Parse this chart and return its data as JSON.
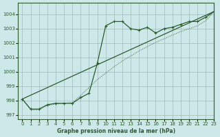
{
  "title": "Graphe pression niveau de la mer (hPa)",
  "background_color": "#cde8e8",
  "plot_bg_color": "#cde8e8",
  "grid_color": "#a0b8b8",
  "line_color": "#2d5a2d",
  "xlim": [
    -0.5,
    23
  ],
  "ylim": [
    996.7,
    1004.8
  ],
  "yticks": [
    997,
    998,
    999,
    1000,
    1001,
    1002,
    1003,
    1004
  ],
  "xticks": [
    0,
    1,
    2,
    3,
    4,
    5,
    6,
    7,
    8,
    9,
    10,
    11,
    12,
    13,
    14,
    15,
    16,
    17,
    18,
    19,
    20,
    21,
    22,
    23
  ],
  "series_main_x": [
    0,
    1,
    2,
    3,
    4,
    5,
    6,
    7,
    8,
    9,
    10,
    11,
    12,
    13,
    14,
    15,
    16,
    17,
    18,
    19,
    20,
    21,
    22,
    23
  ],
  "series_main_y": [
    998.1,
    997.4,
    997.4,
    997.7,
    997.8,
    997.8,
    997.8,
    998.2,
    998.5,
    1000.6,
    1003.2,
    1003.5,
    1003.5,
    1003.0,
    1002.9,
    1003.1,
    1002.7,
    1003.0,
    1003.1,
    1003.3,
    1003.5,
    1003.5,
    1003.8,
    1004.2
  ],
  "series_dotted_x": [
    0,
    1,
    2,
    3,
    4,
    5,
    6,
    7,
    8,
    9,
    10,
    11,
    12,
    13,
    14,
    15,
    16,
    17,
    18,
    19,
    20,
    21,
    22,
    23
  ],
  "series_dotted_y": [
    998.1,
    997.35,
    997.35,
    997.65,
    997.75,
    997.8,
    997.85,
    998.35,
    998.9,
    999.45,
    999.9,
    1000.35,
    1000.75,
    1001.1,
    1001.45,
    1001.75,
    1002.05,
    1002.3,
    1002.55,
    1002.8,
    1003.0,
    1003.2,
    1003.55,
    1004.2
  ],
  "series_line_x": [
    0,
    23
  ],
  "series_line_y": [
    998.1,
    1004.2
  ]
}
